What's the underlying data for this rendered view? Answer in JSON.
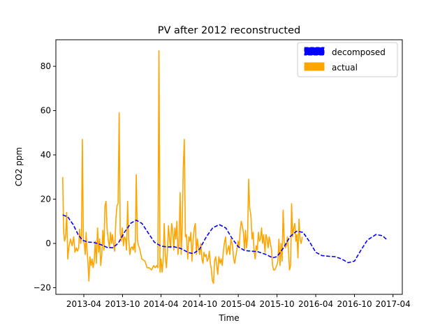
{
  "chart_data": {
    "type": "line",
    "title": "PV after 2012 reconstructed",
    "xlabel": "Time",
    "ylabel": "CO2 ppm",
    "x_range": [
      "2012-11-20",
      "2017-05-15"
    ],
    "ylim": [
      -23,
      92
    ],
    "x_ticks": [
      {
        "date": "2013-04-01",
        "label": "2013-04"
      },
      {
        "date": "2013-10-01",
        "label": "2013-10"
      },
      {
        "date": "2014-04-01",
        "label": "2014-04"
      },
      {
        "date": "2014-10-01",
        "label": "2014-10"
      },
      {
        "date": "2015-04-01",
        "label": "2015-04"
      },
      {
        "date": "2015-10-01",
        "label": "2015-10"
      },
      {
        "date": "2016-04-01",
        "label": "2016-04"
      },
      {
        "date": "2016-10-01",
        "label": "2016-10"
      },
      {
        "date": "2017-04-01",
        "label": "2017-04"
      }
    ],
    "y_ticks": [
      -20,
      0,
      20,
      40,
      60,
      80
    ],
    "grid": false,
    "legend_position": "top-right",
    "series": [
      {
        "name": "decomposed",
        "color": "#0000ff",
        "style": "dashed",
        "points": [
          [
            "2012-12-22",
            12.9
          ],
          [
            "2013-01-15",
            12.0
          ],
          [
            "2013-02-10",
            8.5
          ],
          [
            "2013-03-05",
            4.0
          ],
          [
            "2013-03-25",
            1.5
          ],
          [
            "2013-04-20",
            0.6
          ],
          [
            "2013-05-20",
            0.4
          ],
          [
            "2013-06-20",
            -0.5
          ],
          [
            "2013-07-20",
            -1.8
          ],
          [
            "2013-08-15",
            -2.0
          ],
          [
            "2013-09-10",
            0.0
          ],
          [
            "2013-10-10",
            5.0
          ],
          [
            "2013-11-10",
            9.2
          ],
          [
            "2013-12-05",
            10.5
          ],
          [
            "2014-01-01",
            9.0
          ],
          [
            "2014-02-01",
            4.5
          ],
          [
            "2014-03-01",
            0.5
          ],
          [
            "2014-04-01",
            -1.2
          ],
          [
            "2014-05-01",
            -1.6
          ],
          [
            "2014-06-01",
            -1.5
          ],
          [
            "2014-07-01",
            -2.2
          ],
          [
            "2014-08-10",
            -4.2
          ],
          [
            "2014-09-01",
            -4.6
          ],
          [
            "2014-10-01",
            -2.5
          ],
          [
            "2014-11-01",
            3.0
          ],
          [
            "2014-12-01",
            7.0
          ],
          [
            "2015-01-01",
            8.5
          ],
          [
            "2015-02-01",
            7.0
          ],
          [
            "2015-03-01",
            2.5
          ],
          [
            "2015-04-01",
            -1.5
          ],
          [
            "2015-05-01",
            -3.2
          ],
          [
            "2015-06-01",
            -3.5
          ],
          [
            "2015-07-01",
            -3.7
          ],
          [
            "2015-08-10",
            -5.0
          ],
          [
            "2015-09-10",
            -6.5
          ],
          [
            "2015-10-01",
            -6.0
          ],
          [
            "2015-11-01",
            -2.0
          ],
          [
            "2015-12-01",
            3.0
          ],
          [
            "2016-01-01",
            5.5
          ],
          [
            "2016-02-01",
            5.0
          ],
          [
            "2016-03-01",
            1.0
          ],
          [
            "2016-04-01",
            -4.0
          ],
          [
            "2016-05-01",
            -5.5
          ],
          [
            "2016-06-01",
            -5.8
          ],
          [
            "2016-07-01",
            -6.0
          ],
          [
            "2016-08-01",
            -7.0
          ],
          [
            "2016-09-01",
            -8.7
          ],
          [
            "2016-10-01",
            -8.0
          ],
          [
            "2016-11-01",
            -3.0
          ],
          [
            "2016-12-01",
            1.5
          ],
          [
            "2017-01-10",
            4.0
          ],
          [
            "2017-02-10",
            3.5
          ],
          [
            "2017-03-05",
            1.5
          ]
        ]
      },
      {
        "name": "actual",
        "color": "#ffa500",
        "style": "solid",
        "points": [
          [
            "2012-12-22",
            30.0
          ],
          [
            "2012-12-27",
            5.0
          ],
          [
            "2012-12-31",
            1.0
          ],
          [
            "2013-01-05",
            3.0
          ],
          [
            "2013-01-10",
            14.0
          ],
          [
            "2013-01-15",
            -7.0
          ],
          [
            "2013-01-20",
            -2.0
          ],
          [
            "2013-01-28",
            2.0
          ],
          [
            "2013-02-05",
            -1.0
          ],
          [
            "2013-02-12",
            3.0
          ],
          [
            "2013-02-18",
            -4.0
          ],
          [
            "2013-02-25",
            -2.0
          ],
          [
            "2013-03-02",
            -3.5
          ],
          [
            "2013-03-08",
            -2.0
          ],
          [
            "2013-03-12",
            6.5
          ],
          [
            "2013-03-17",
            0.0
          ],
          [
            "2013-03-21",
            3.0
          ],
          [
            "2013-03-25",
            47.0
          ],
          [
            "2013-03-30",
            1.0
          ],
          [
            "2013-04-03",
            0.0
          ],
          [
            "2013-04-08",
            -5.0
          ],
          [
            "2013-04-12",
            5.0
          ],
          [
            "2013-04-16",
            -3.0
          ],
          [
            "2013-04-20",
            -8.0
          ],
          [
            "2013-04-25",
            -17.0
          ],
          [
            "2013-04-30",
            -6.0
          ],
          [
            "2013-05-05",
            -10.0
          ],
          [
            "2013-05-10",
            -7.0
          ],
          [
            "2013-05-15",
            -11.0
          ],
          [
            "2013-05-20",
            -8.0
          ],
          [
            "2013-05-25",
            1.0
          ],
          [
            "2013-05-30",
            -9.0
          ],
          [
            "2013-06-05",
            7.0
          ],
          [
            "2013-06-10",
            -4.0
          ],
          [
            "2013-06-15",
            2.0
          ],
          [
            "2013-06-20",
            -10.0
          ],
          [
            "2013-06-25",
            -5.0
          ],
          [
            "2013-06-30",
            6.0
          ],
          [
            "2013-07-05",
            -3.0
          ],
          [
            "2013-07-10",
            17.0
          ],
          [
            "2013-07-15",
            19.0
          ],
          [
            "2013-07-20",
            7.0
          ],
          [
            "2013-07-25",
            2.0
          ],
          [
            "2013-07-31",
            -2.0
          ],
          [
            "2013-08-05",
            5.0
          ],
          [
            "2013-08-10",
            0.0
          ],
          [
            "2013-08-15",
            4.0
          ],
          [
            "2013-08-20",
            -1.0
          ],
          [
            "2013-08-25",
            -3.5
          ],
          [
            "2013-08-31",
            12.0
          ],
          [
            "2013-09-05",
            17.0
          ],
          [
            "2013-09-10",
            18.0
          ],
          [
            "2013-09-15",
            59.0
          ],
          [
            "2013-09-20",
            5.0
          ],
          [
            "2013-09-25",
            1.0
          ],
          [
            "2013-09-30",
            7.0
          ],
          [
            "2013-10-05",
            -1.0
          ],
          [
            "2013-10-10",
            3.0
          ],
          [
            "2013-10-15",
            2.0
          ],
          [
            "2013-10-20",
            -3.0
          ],
          [
            "2013-10-25",
            19.0
          ],
          [
            "2013-10-30",
            2.0
          ],
          [
            "2013-11-05",
            -5.0
          ],
          [
            "2013-11-10",
            -2.0
          ],
          [
            "2013-11-15",
            -1.5
          ],
          [
            "2013-11-20",
            -3.0
          ],
          [
            "2013-11-25",
            0.0
          ],
          [
            "2013-11-30",
            -4.0
          ],
          [
            "2013-12-05",
            31.0
          ],
          [
            "2013-12-10",
            2.0
          ],
          [
            "2013-12-15",
            -1.0
          ],
          [
            "2013-12-20",
            -2.0
          ],
          [
            "2013-12-31",
            -7.0
          ],
          [
            "2014-01-15",
            -8.0
          ],
          [
            "2014-01-25",
            -11.0
          ],
          [
            "2014-02-05",
            -11.0
          ],
          [
            "2014-02-15",
            -12.0
          ],
          [
            "2014-02-25",
            -10.0
          ],
          [
            "2014-03-05",
            -11.0
          ],
          [
            "2014-03-12",
            -10.0
          ],
          [
            "2014-03-17",
            -11.0
          ],
          [
            "2014-03-22",
            87.0
          ],
          [
            "2014-03-27",
            -13.0
          ],
          [
            "2014-04-01",
            -7.0
          ],
          [
            "2014-04-06",
            -13.0
          ],
          [
            "2014-04-11",
            -8.0
          ],
          [
            "2014-04-16",
            9.0
          ],
          [
            "2014-04-21",
            -5.0
          ],
          [
            "2014-04-26",
            -11.0
          ],
          [
            "2014-05-01",
            -4.0
          ],
          [
            "2014-05-06",
            8.0
          ],
          [
            "2014-05-11",
            2.0
          ],
          [
            "2014-05-16",
            -2.0
          ],
          [
            "2014-05-21",
            9.0
          ],
          [
            "2014-05-26",
            6.0
          ],
          [
            "2014-05-31",
            -3.0
          ],
          [
            "2014-06-05",
            7.0
          ],
          [
            "2014-06-10",
            2.0
          ],
          [
            "2014-06-15",
            10.0
          ],
          [
            "2014-06-20",
            -5.0
          ],
          [
            "2014-06-25",
            0.0
          ],
          [
            "2014-06-30",
            23.0
          ],
          [
            "2014-07-05",
            -5.0
          ],
          [
            "2014-07-10",
            8.0
          ],
          [
            "2014-07-15",
            34.0
          ],
          [
            "2014-07-20",
            47.0
          ],
          [
            "2014-07-25",
            3.0
          ],
          [
            "2014-07-30",
            4.0
          ],
          [
            "2014-08-05",
            -7.0
          ],
          [
            "2014-08-10",
            3.0
          ],
          [
            "2014-08-15",
            1.0
          ],
          [
            "2014-08-20",
            5.0
          ],
          [
            "2014-08-25",
            -8.0
          ],
          [
            "2014-08-31",
            2.0
          ],
          [
            "2014-09-05",
            7.0
          ],
          [
            "2014-09-10",
            9.0
          ],
          [
            "2014-09-15",
            -5.0
          ],
          [
            "2014-09-20",
            2.0
          ],
          [
            "2014-09-25",
            -2.0
          ],
          [
            "2014-10-01",
            -5.0
          ],
          [
            "2014-10-06",
            0.0
          ],
          [
            "2014-10-11",
            -7.0
          ],
          [
            "2014-10-16",
            -9.0
          ],
          [
            "2014-10-21",
            -4.0
          ],
          [
            "2014-10-26",
            -6.0
          ],
          [
            "2014-10-31",
            -5.0
          ],
          [
            "2014-11-05",
            -8.0
          ],
          [
            "2014-11-10",
            -7.0
          ],
          [
            "2014-11-15",
            -3.5
          ],
          [
            "2014-11-20",
            -9.0
          ],
          [
            "2014-11-25",
            -12.0
          ],
          [
            "2014-11-30",
            -17.0
          ],
          [
            "2014-12-05",
            -18.0
          ],
          [
            "2014-12-10",
            -8.0
          ],
          [
            "2014-12-15",
            -6.0
          ],
          [
            "2014-12-20",
            -10.0
          ],
          [
            "2014-12-25",
            -14.0
          ],
          [
            "2014-12-30",
            -6.0
          ],
          [
            "2015-01-05",
            -9.0
          ],
          [
            "2015-01-10",
            -7.0
          ],
          [
            "2015-01-15",
            -10.0
          ],
          [
            "2015-01-20",
            -4.0
          ],
          [
            "2015-01-25",
            0.0
          ],
          [
            "2015-01-31",
            3.0
          ],
          [
            "2015-02-05",
            -5.0
          ],
          [
            "2015-02-10",
            -3.0
          ],
          [
            "2015-02-15",
            -1.0
          ],
          [
            "2015-02-20",
            -5.0
          ],
          [
            "2015-02-25",
            2.0
          ],
          [
            "2015-03-05",
            -1.0
          ],
          [
            "2015-03-10",
            -7.0
          ],
          [
            "2015-03-15",
            -9.0
          ],
          [
            "2015-03-20",
            -6.0
          ],
          [
            "2015-03-25",
            -3.0
          ],
          [
            "2015-03-31",
            1.0
          ],
          [
            "2015-04-05",
            -2.0
          ],
          [
            "2015-04-10",
            6.0
          ],
          [
            "2015-04-15",
            10.0
          ],
          [
            "2015-04-20",
            8.0
          ],
          [
            "2015-04-25",
            5.0
          ],
          [
            "2015-04-30",
            -3.0
          ],
          [
            "2015-05-05",
            6.0
          ],
          [
            "2015-05-10",
            -2.0
          ],
          [
            "2015-05-15",
            3.0
          ],
          [
            "2015-05-20",
            29.0
          ],
          [
            "2015-05-25",
            16.0
          ],
          [
            "2015-05-30",
            13.0
          ],
          [
            "2015-06-05",
            2.0
          ],
          [
            "2015-06-10",
            5.0
          ],
          [
            "2015-06-15",
            -4.0
          ],
          [
            "2015-06-20",
            -7.0
          ],
          [
            "2015-06-25",
            -1.0
          ],
          [
            "2015-06-30",
            -3.0
          ],
          [
            "2015-07-05",
            5.0
          ],
          [
            "2015-07-10",
            1.0
          ],
          [
            "2015-07-15",
            2.0
          ],
          [
            "2015-07-20",
            7.0
          ],
          [
            "2015-07-25",
            0.0
          ],
          [
            "2015-07-30",
            4.0
          ],
          [
            "2015-08-05",
            -4.0
          ],
          [
            "2015-08-10",
            4.0
          ],
          [
            "2015-08-15",
            2.0
          ],
          [
            "2015-08-20",
            -2.0
          ],
          [
            "2015-08-25",
            3.0
          ],
          [
            "2015-08-31",
            0.0
          ],
          [
            "2015-09-05",
            -3.0
          ],
          [
            "2015-09-10",
            -10.0
          ],
          [
            "2015-09-15",
            -12.0
          ],
          [
            "2015-09-20",
            -12.0
          ],
          [
            "2015-09-25",
            -11.0
          ],
          [
            "2015-09-30",
            -10.0
          ],
          [
            "2015-10-05",
            -8.0
          ],
          [
            "2015-10-10",
            2.0
          ],
          [
            "2015-10-15",
            -10.0
          ],
          [
            "2015-10-20",
            0.0
          ],
          [
            "2015-10-25",
            -8.0
          ],
          [
            "2015-10-30",
            15.0
          ],
          [
            "2015-11-04",
            1.0
          ],
          [
            "2015-11-09",
            -2.0
          ],
          [
            "2015-11-14",
            -1.0
          ],
          [
            "2015-11-19",
            3.0
          ],
          [
            "2015-11-24",
            -3.0
          ],
          [
            "2015-11-29",
            -12.0
          ],
          [
            "2015-12-04",
            -10.0
          ],
          [
            "2015-12-09",
            18.0
          ],
          [
            "2015-12-14",
            3.0
          ],
          [
            "2015-12-19",
            7.0
          ],
          [
            "2015-12-24",
            9.0
          ],
          [
            "2015-12-29",
            1.0
          ],
          [
            "2016-01-03",
            4.0
          ],
          [
            "2016-01-08",
            -6.5
          ],
          [
            "2016-01-13",
            11.0
          ],
          [
            "2016-01-18",
            1.5
          ],
          [
            "2016-01-23",
            0.0
          ],
          [
            "2016-01-28",
            3.0
          ]
        ]
      }
    ]
  }
}
